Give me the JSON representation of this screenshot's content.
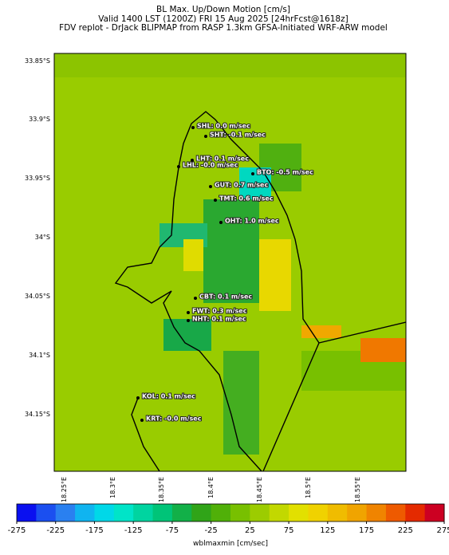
{
  "header": {
    "title": "BL Max. Up/Down Motion [cm/s]",
    "subtitle": "Valid 1400 LST (1200Z) FRI 15 Aug 2025 [24hrFcst@1618z]",
    "source": "FDV replot - DrJack BLIPMAP from RASP 1.3km GFSA-Initiated WRF-ARW model"
  },
  "map": {
    "lat_labels": [
      "33.85°S",
      "33.9°S",
      "33.95°S",
      "34°S",
      "34.05°S",
      "34.1°S",
      "34.15°S"
    ],
    "lon_labels": [
      "18.25°E",
      "18.3°E",
      "18.35°E",
      "18.4°E",
      "18.45°E",
      "18.5°E",
      "18.55°E"
    ],
    "stations": [
      "SHL: 0.0 m/sec",
      "SHT: -0.1 m/sec",
      "LHT: 0.1 m/sec",
      "LHL: -0.0 m/sec",
      "BTO: -0.5 m/sec",
      "GUT: 0.7 m/sec",
      "TMT: 0.6 m/sec",
      "OHT: 1.0 m/sec",
      "CBT: 0.1 m/sec",
      "FWT: 0.3 m/sec",
      "NHT: 0.1 m/sec",
      "KOL: 0.1 m/sec",
      "KRT: -0.0 m/sec"
    ]
  },
  "colorbar": {
    "lim": [
      -275,
      275
    ],
    "ticks": [
      -275,
      -225,
      -175,
      -125,
      -75,
      -25,
      25,
      75,
      125,
      175,
      225,
      275
    ],
    "label": "wblmaxmin [cm/sec]",
    "colors": [
      "#0a10f0",
      "#1b4ff0",
      "#2a80f0",
      "#10b4f0",
      "#00d8e8",
      "#00e4c8",
      "#00d4a0",
      "#00c478",
      "#12b048",
      "#30a418",
      "#50b008",
      "#78c000",
      "#9ccc00",
      "#c2d800",
      "#e2e000",
      "#f0d200",
      "#f0bc00",
      "#f0a400",
      "#f08400",
      "#ee5a00",
      "#e42a00",
      "#cc0022"
    ]
  }
}
